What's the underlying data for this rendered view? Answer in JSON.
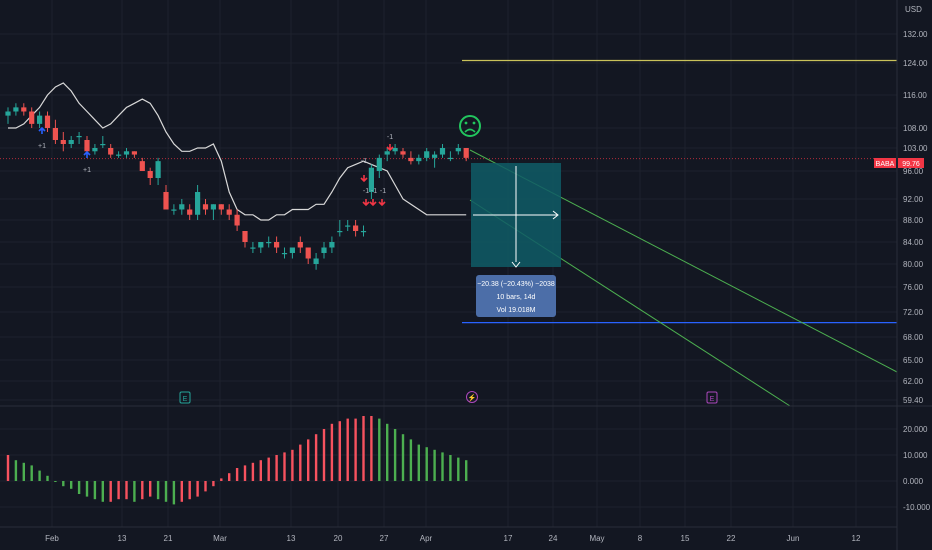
{
  "symbol": "BABA",
  "currency": "USD",
  "last_price": "99.76",
  "price_axis": {
    "labels": [
      "132.00",
      "124.00",
      "116.00",
      "108.00",
      "103.00",
      "96.00",
      "92.00",
      "88.00",
      "84.00",
      "80.00",
      "76.00",
      "72.00",
      "68.00",
      "65.00",
      "62.00",
      "59.40"
    ],
    "values": [
      132,
      124,
      116,
      108,
      103,
      96,
      92,
      88,
      84,
      80,
      76,
      72,
      68,
      65,
      62,
      59.4
    ]
  },
  "osc_axis": {
    "labels": [
      "20.000",
      "10.000",
      "0.000",
      "-10.000"
    ],
    "values": [
      20,
      10,
      0,
      -10
    ]
  },
  "time_axis": {
    "labels": [
      "Feb",
      "13",
      "21",
      "Mar",
      "13",
      "20",
      "27",
      "Apr",
      "17",
      "24",
      "May",
      "8",
      "15",
      "22",
      "Jun",
      "12"
    ]
  },
  "measure_box": {
    "line1": "−20.38 (−20.43%) −2038",
    "line2": "10 bars, 14d",
    "line3": "Vol 19.018M"
  },
  "chart_data": {
    "type": "candlestick",
    "series_label": "BABA",
    "last_price": 99.76,
    "candles": [
      {
        "o": 111,
        "h": 113,
        "l": 109,
        "c": 112
      },
      {
        "o": 112,
        "h": 114,
        "l": 111,
        "c": 113
      },
      {
        "o": 113,
        "h": 114,
        "l": 111,
        "c": 112
      },
      {
        "o": 112,
        "h": 113,
        "l": 108,
        "c": 109
      },
      {
        "o": 109,
        "h": 112,
        "l": 108,
        "c": 111
      },
      {
        "o": 111,
        "h": 112,
        "l": 107,
        "c": 108
      },
      {
        "o": 108,
        "h": 110,
        "l": 104,
        "c": 105
      },
      {
        "o": 105,
        "h": 107,
        "l": 102,
        "c": 104
      },
      {
        "o": 104,
        "h": 106,
        "l": 103,
        "c": 105
      },
      {
        "o": 106,
        "h": 107,
        "l": 104,
        "c": 106
      },
      {
        "o": 105,
        "h": 106,
        "l": 101,
        "c": 102
      },
      {
        "o": 102,
        "h": 104,
        "l": 101,
        "c": 103
      },
      {
        "o": 104,
        "h": 106,
        "l": 103,
        "c": 104
      },
      {
        "o": 103,
        "h": 104,
        "l": 100,
        "c": 101
      },
      {
        "o": 101,
        "h": 102,
        "l": 100,
        "c": 101
      },
      {
        "o": 101,
        "h": 103,
        "l": 100,
        "c": 102
      },
      {
        "o": 102,
        "h": 102,
        "l": 100,
        "c": 101
      },
      {
        "o": 99,
        "h": 100,
        "l": 96,
        "c": 96
      },
      {
        "o": 96,
        "h": 97,
        "l": 94,
        "c": 95
      },
      {
        "o": 95,
        "h": 100,
        "l": 94,
        "c": 99
      },
      {
        "o": 93,
        "h": 94,
        "l": 90,
        "c": 90
      },
      {
        "o": 90,
        "h": 91,
        "l": 89,
        "c": 90
      },
      {
        "o": 90,
        "h": 92,
        "l": 89,
        "c": 91
      },
      {
        "o": 90,
        "h": 91,
        "l": 88,
        "c": 89
      },
      {
        "o": 89,
        "h": 94,
        "l": 88,
        "c": 93
      },
      {
        "o": 91,
        "h": 92,
        "l": 89,
        "c": 90
      },
      {
        "o": 90,
        "h": 91,
        "l": 88,
        "c": 91
      },
      {
        "o": 91,
        "h": 91,
        "l": 89,
        "c": 90
      },
      {
        "o": 90,
        "h": 91,
        "l": 88,
        "c": 89
      },
      {
        "o": 89,
        "h": 90,
        "l": 86,
        "c": 87
      },
      {
        "o": 86,
        "h": 86,
        "l": 83,
        "c": 84
      },
      {
        "o": 83,
        "h": 84,
        "l": 82,
        "c": 83
      },
      {
        "o": 83,
        "h": 84,
        "l": 82,
        "c": 84
      },
      {
        "o": 84,
        "h": 85,
        "l": 83,
        "c": 84
      },
      {
        "o": 84,
        "h": 85,
        "l": 82,
        "c": 83
      },
      {
        "o": 82,
        "h": 83,
        "l": 81,
        "c": 82
      },
      {
        "o": 82,
        "h": 83,
        "l": 81,
        "c": 83
      },
      {
        "o": 84,
        "h": 85,
        "l": 82,
        "c": 83
      },
      {
        "o": 83,
        "h": 83,
        "l": 80,
        "c": 81
      },
      {
        "o": 80,
        "h": 82,
        "l": 79,
        "c": 81
      },
      {
        "o": 82,
        "h": 84,
        "l": 81,
        "c": 83
      },
      {
        "o": 83,
        "h": 85,
        "l": 82,
        "c": 84
      },
      {
        "o": 86,
        "h": 88,
        "l": 85,
        "c": 86
      },
      {
        "o": 87,
        "h": 88,
        "l": 86,
        "c": 87
      },
      {
        "o": 87,
        "h": 88,
        "l": 85,
        "c": 86
      },
      {
        "o": 86,
        "h": 87,
        "l": 85,
        "c": 86
      },
      {
        "o": 93,
        "h": 98,
        "l": 92,
        "c": 97
      },
      {
        "o": 96,
        "h": 101,
        "l": 95,
        "c": 100
      },
      {
        "o": 101,
        "h": 103,
        "l": 99,
        "c": 102
      },
      {
        "o": 102,
        "h": 104,
        "l": 101,
        "c": 103
      },
      {
        "o": 102,
        "h": 103,
        "l": 100,
        "c": 101
      },
      {
        "o": 100,
        "h": 102,
        "l": 98,
        "c": 99
      },
      {
        "o": 99,
        "h": 101,
        "l": 98,
        "c": 100
      },
      {
        "o": 100,
        "h": 103,
        "l": 99,
        "c": 102
      },
      {
        "o": 100,
        "h": 102,
        "l": 97,
        "c": 101
      },
      {
        "o": 101,
        "h": 104,
        "l": 100,
        "c": 103
      },
      {
        "o": 100,
        "h": 102,
        "l": 99,
        "c": 100
      },
      {
        "o": 102,
        "h": 104,
        "l": 101,
        "c": 103
      },
      {
        "o": 103,
        "h": 103,
        "l": 99,
        "c": 100
      }
    ],
    "moving_average": [
      108,
      108,
      109,
      111,
      113,
      116,
      118,
      119,
      117,
      114,
      112,
      110,
      108,
      109,
      111,
      113,
      114,
      115,
      114,
      111,
      107,
      104,
      102,
      102,
      103,
      103,
      104,
      99,
      93,
      90,
      89,
      89,
      88,
      88,
      89,
      89,
      90,
      90,
      90,
      91,
      91,
      93,
      95,
      97,
      98,
      99,
      98,
      97,
      96,
      94,
      92,
      91,
      90,
      89,
      89,
      89,
      89,
      89,
      89
    ],
    "oscillator": [
      10,
      8,
      7,
      6,
      4,
      2,
      0,
      -2,
      -3,
      -5,
      -6,
      -7,
      -8,
      -8,
      -7,
      -7,
      -8,
      -7,
      -6,
      -7,
      -8,
      -9,
      -8,
      -7,
      -6,
      -4,
      -2,
      1,
      3,
      5,
      6,
      7,
      8,
      9,
      10,
      11,
      12,
      14,
      16,
      18,
      20,
      22,
      23,
      24,
      24,
      25,
      25,
      24,
      22,
      20,
      18,
      16,
      14,
      13,
      12,
      11,
      10,
      9,
      8
    ],
    "oscillator_colors_note": "red while rising, green while falling",
    "long_range_lines": [
      124.7,
      70.3
    ],
    "annotations": [
      {
        "text": "+1"
      },
      {
        "text": "+1"
      },
      {
        "text": "-1"
      },
      {
        "text": "-1"
      },
      {
        "text": "-1"
      },
      {
        "text": "-1"
      },
      {
        "text": "-1"
      }
    ],
    "measure": {
      "change": -20.38,
      "change_pct": -20.43,
      "bars": 10,
      "days": 14,
      "volume": "19.018M"
    },
    "event_markers": [
      "E",
      "⚡",
      "E"
    ],
    "emoji": "frowning-face"
  },
  "colors": {
    "background": "#131722",
    "grid": "#1e222d",
    "up": "#26a69a",
    "down": "#ef5350",
    "osc_up": "#f7525f",
    "osc_down": "#4caf50",
    "ma": "#d9d9d9",
    "box": "#0f5c66",
    "measure_label_bg": "#4c6ea8",
    "yellow_line": "#c9c25a",
    "blue_line": "#2962ff",
    "green_trend": "#4caf50",
    "price_tag": "#f23645"
  }
}
